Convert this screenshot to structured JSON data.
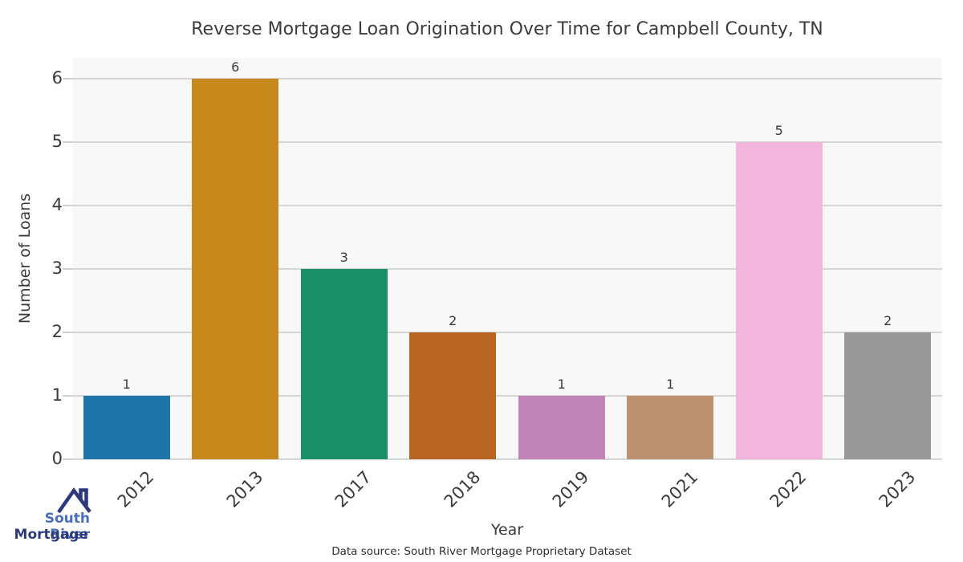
{
  "title": "Reverse Mortgage Loan Origination Over Time for Campbell County, TN",
  "chart_data": {
    "type": "bar",
    "categories": [
      "2012",
      "2013",
      "2017",
      "2018",
      "2019",
      "2021",
      "2022",
      "2023"
    ],
    "values": [
      1,
      6,
      3,
      2,
      1,
      1,
      5,
      2
    ],
    "bar_labels": [
      "1",
      "6",
      "3",
      "2",
      "1",
      "1",
      "5",
      "2"
    ],
    "bar_colors": [
      "#1f74a8",
      "#c8891c",
      "#1b8f67",
      "#b96522",
      "#c084b9",
      "#bd9270",
      "#f2b5dc",
      "#999999"
    ],
    "title": "Reverse Mortgage Loan Origination Over Time for Campbell County, TN",
    "xlabel": "Year",
    "ylabel": "Number of Loans",
    "y_ticks": [
      0,
      1,
      2,
      3,
      4,
      5,
      6
    ],
    "ylim": [
      0,
      6.33
    ],
    "grid": "horizontal",
    "legend": "none",
    "plot_bg_color": "#f8f8f8",
    "gridline_color": "#d6d6d6",
    "text_color": "#3a3a3a"
  },
  "footer": {
    "data_source": "Data source: South River Mortgage Proprietary Dataset"
  },
  "logo": {
    "icon": "house-roof-icon",
    "line1": "South River",
    "line2": "Mortgage",
    "line1_color": "#4a6fb8",
    "line2_color": "#2c3a7c",
    "icon_color": "#2c3a7c"
  }
}
